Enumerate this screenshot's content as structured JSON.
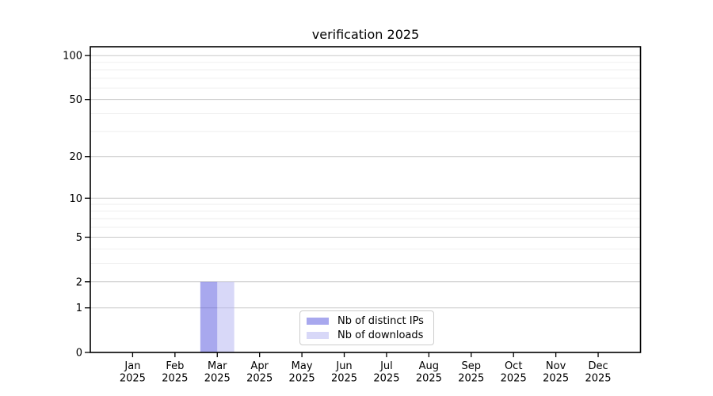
{
  "chart_data": {
    "type": "bar",
    "title": "verification 2025",
    "x_axis": {
      "categories": [
        "Jan",
        "Feb",
        "Mar",
        "Apr",
        "May",
        "Jun",
        "Jul",
        "Aug",
        "Sep",
        "Oct",
        "Nov",
        "Dec"
      ],
      "year_label": "2025"
    },
    "y_axis": {
      "scale": "log10(value+1)",
      "major_ticks": [
        0,
        1,
        2,
        5,
        10,
        20,
        50,
        100
      ],
      "minor_ticks": [
        3,
        4,
        6,
        7,
        8,
        9,
        30,
        40,
        60,
        70,
        80,
        90
      ],
      "range": [
        0,
        115
      ]
    },
    "series": [
      {
        "name": "Nb of distinct IPs",
        "color": "#a8a8ee",
        "fill_base": "#5151dd",
        "fill_opacity": 0.5,
        "values": [
          0,
          0,
          2,
          0,
          0,
          0,
          0,
          0,
          0,
          0,
          0,
          0
        ]
      },
      {
        "name": "Nb of downloads",
        "color": "#d8d8f8",
        "fill_base": "#b1b1f1",
        "fill_opacity": 0.5,
        "values": [
          0,
          0,
          2,
          0,
          0,
          0,
          0,
          0,
          0,
          0,
          0,
          0
        ]
      }
    ],
    "legend": {
      "position": "inside-bottom-center",
      "border_color": "#cccccc",
      "background": "#ffffff"
    },
    "grid": {
      "major_color": "#c9c9c9",
      "minor_color": "#ededed"
    },
    "frame_color": "#000000",
    "background": "#ffffff"
  }
}
